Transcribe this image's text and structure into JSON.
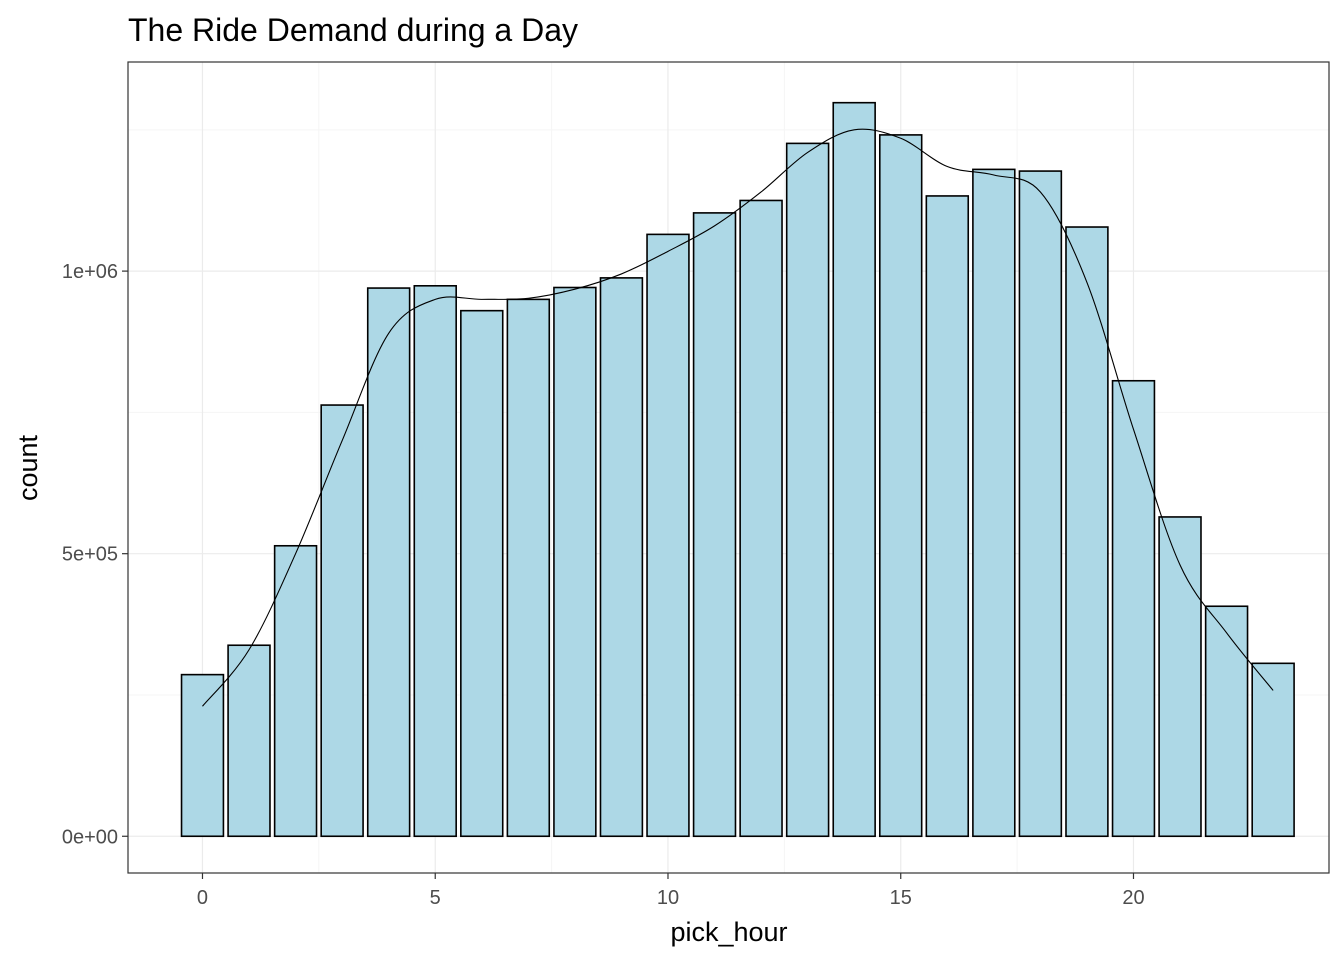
{
  "chart_data": {
    "type": "bar",
    "title": "The Ride Demand during a Day",
    "xlabel": "pick_hour",
    "ylabel": "count",
    "x": [
      0,
      1,
      2,
      3,
      4,
      5,
      6,
      7,
      8,
      9,
      10,
      11,
      12,
      13,
      14,
      15,
      16,
      17,
      18,
      19,
      20,
      21,
      22,
      23
    ],
    "values": [
      286000,
      338000,
      514000,
      763000,
      970000,
      974000,
      930000,
      950000,
      971000,
      988000,
      1065000,
      1103000,
      1125000,
      1226000,
      1298000,
      1241000,
      1133000,
      1180000,
      1177000,
      1078000,
      806000,
      565000,
      407000,
      306000
    ],
    "smooth_line": {
      "x": [
        0,
        1,
        2,
        3,
        4,
        5,
        6,
        7,
        8,
        9,
        10,
        11,
        12,
        13,
        14,
        15,
        16,
        17,
        18,
        19,
        20,
        21,
        22,
        23
      ],
      "y": [
        230000,
        330000,
        500000,
        700000,
        890000,
        950000,
        950000,
        952000,
        968000,
        995000,
        1035000,
        1080000,
        1140000,
        1210000,
        1250000,
        1235000,
        1185000,
        1170000,
        1140000,
        980000,
        720000,
        480000,
        360000,
        258000
      ]
    },
    "xlim": [
      -1.6,
      24.2
    ],
    "ylim": [
      -65000,
      1370000
    ],
    "x_ticks": [
      0,
      5,
      10,
      15,
      20
    ],
    "x_tick_labels": [
      "0",
      "5",
      "10",
      "15",
      "20"
    ],
    "y_ticks": [
      0,
      500000,
      1000000
    ],
    "y_tick_labels": [
      "0e+00",
      "5e+05",
      "1e+06"
    ],
    "grid": true,
    "legend": "none",
    "colors": {
      "bar_fill": "#add8e6",
      "bar_stroke": "#000000",
      "line": "#000000",
      "grid_major": "#ebebeb",
      "grid_minor": "#f5f5f5",
      "panel_border": "#333333",
      "tick_text": "#4d4d4d"
    }
  }
}
